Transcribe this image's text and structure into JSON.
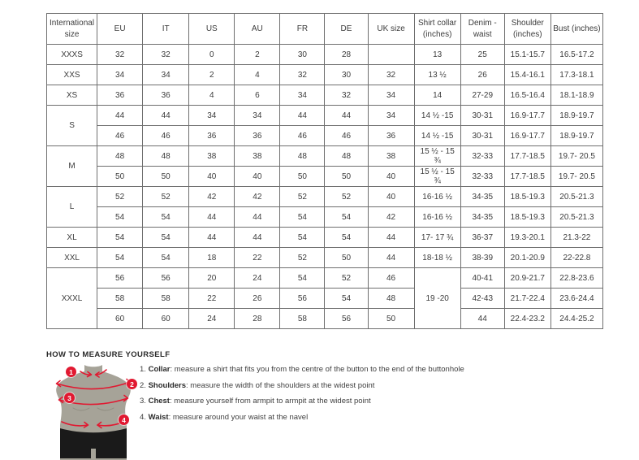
{
  "table": {
    "headers": [
      "International size",
      "EU",
      "IT",
      "US",
      "AU",
      "FR",
      "DE",
      "UK size",
      "Shirt collar (inches)",
      "Denim - waist",
      "Shoulder (inches)",
      "Bust (inches)"
    ],
    "rows": [
      [
        {
          "t": "XXXS"
        },
        "32",
        "32",
        "0",
        "2",
        "30",
        "28",
        "",
        "13",
        "25",
        "15.1-15.7",
        "16.5-17.2"
      ],
      [
        {
          "t": "XXS"
        },
        "34",
        "34",
        "2",
        "4",
        "32",
        "30",
        "32",
        "13 ½",
        "26",
        "15.4-16.1",
        "17.3-18.1"
      ],
      [
        {
          "t": "XS"
        },
        "36",
        "36",
        "4",
        "6",
        "34",
        "32",
        "34",
        "14",
        "27-29",
        "16.5-16.4",
        "18.1-18.9"
      ],
      [
        {
          "t": "S",
          "rs": 2
        },
        "44",
        "44",
        "34",
        "34",
        "44",
        "44",
        "34",
        "14 ½ -15",
        "30-31",
        "16.9-17.7",
        "18.9-19.7"
      ],
      [
        "46",
        "46",
        "36",
        "36",
        "46",
        "46",
        "36",
        "14 ½ -15",
        "30-31",
        "16.9-17.7",
        "18.9-19.7"
      ],
      [
        {
          "t": "M",
          "rs": 2
        },
        "48",
        "48",
        "38",
        "38",
        "48",
        "48",
        "38",
        "15 ½ - 15 ¾",
        "32-33",
        "17.7-18.5",
        "19.7- 20.5"
      ],
      [
        "50",
        "50",
        "40",
        "40",
        "50",
        "50",
        "40",
        "15 ½ - 15 ¾",
        "32-33",
        "17.7-18.5",
        "19.7- 20.5"
      ],
      [
        {
          "t": "L",
          "rs": 2
        },
        "52",
        "52",
        "42",
        "42",
        "52",
        "52",
        "40",
        "16-16 ½",
        "34-35",
        "18.5-19.3",
        "20.5-21.3"
      ],
      [
        "54",
        "54",
        "44",
        "44",
        "54",
        "54",
        "42",
        "16-16 ½",
        "34-35",
        "18.5-19.3",
        "20.5-21.3"
      ],
      [
        {
          "t": "XL"
        },
        "54",
        "54",
        "44",
        "44",
        "54",
        "54",
        "44",
        "17- 17 ¾",
        "36-37",
        "19.3-20.1",
        "21.3-22"
      ],
      [
        {
          "t": "XXL"
        },
        "54",
        "54",
        "18",
        "22",
        "52",
        "50",
        "44",
        "18-18 ½",
        "38-39",
        "20.1-20.9",
        "22-22.8"
      ],
      [
        {
          "t": "XXXL",
          "rs": 3
        },
        "56",
        "56",
        "20",
        "24",
        "54",
        "52",
        "46",
        {
          "t": "19 -20",
          "rs": 3
        },
        "40-41",
        "20.9-21.7",
        "22.8-23.6"
      ],
      [
        "58",
        "58",
        "22",
        "26",
        "56",
        "54",
        "48",
        "42-43",
        "21.7-22.4",
        "23.6-24.4"
      ],
      [
        "60",
        "60",
        "24",
        "28",
        "58",
        "56",
        "50",
        "44",
        "22.4-23.2",
        "24.4-25.2"
      ]
    ]
  },
  "measure": {
    "title": "HOW TO MEASURE YOURSELF",
    "markers": [
      "1",
      "2",
      "3",
      "4"
    ],
    "steps": [
      {
        "num": "1.",
        "label": "Collar",
        "rest": ": measure a shirt that fits you from the centre of the button to the end of the buttonhole"
      },
      {
        "num": "2.",
        "label": "Shoulders",
        "rest": ": measure the width of the shoulders at the widest point"
      },
      {
        "num": "3.",
        "label": "Chest",
        "rest": ": measure yourself from armpit to armpit at the widest point"
      },
      {
        "num": "4.",
        "label": "Waist",
        "rest": ": measure around your waist at the navel"
      }
    ]
  },
  "colors": {
    "accent_red": "#e11931",
    "figure_body": "#a6a398",
    "figure_shorts": "#1a1a1a",
    "table_border": "#6f6f6f",
    "text": "#3c3c3c"
  }
}
